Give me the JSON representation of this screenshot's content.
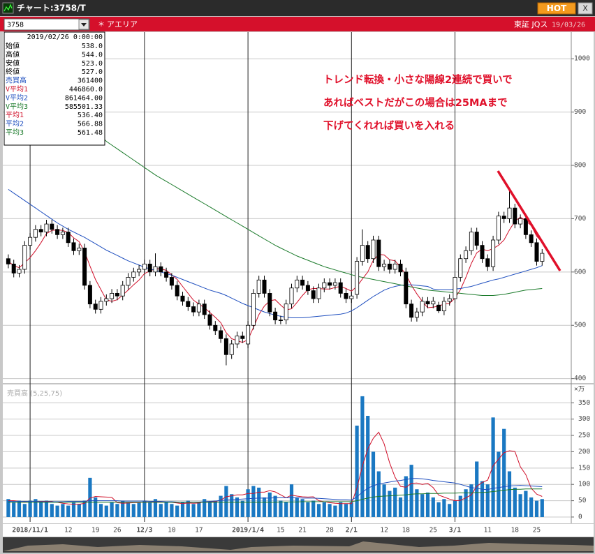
{
  "window": {
    "title": "チャート:3758/T",
    "hot": "HOT",
    "close": "X"
  },
  "toolbar": {
    "code": "3758",
    "name": "アエリア",
    "market": "東証 JQス",
    "date": "19/03/26"
  },
  "info_panel": {
    "date": "2019/02/26 0:00:00",
    "rows": [
      {
        "label": "始値",
        "value": "538.0",
        "color": "#000000"
      },
      {
        "label": "高値",
        "value": "544.0",
        "color": "#000000"
      },
      {
        "label": "安値",
        "value": "523.0",
        "color": "#000000"
      },
      {
        "label": "終値",
        "value": "527.0",
        "color": "#000000"
      },
      {
        "label": "売買高",
        "value": "361400",
        "color": "#1f4fbf"
      },
      {
        "label": "V平均1",
        "value": "446860.0",
        "color": "#d0102a"
      },
      {
        "label": "V平均2",
        "value": "861464.00",
        "color": "#1f4fbf"
      },
      {
        "label": "V平均3",
        "value": "585501.33",
        "color": "#1a7a2a"
      },
      {
        "label": "平均1",
        "value": "536.40",
        "color": "#d0102a"
      },
      {
        "label": "平均2",
        "value": "566.88",
        "color": "#1f4fbf"
      },
      {
        "label": "平均3",
        "value": "561.48",
        "color": "#1a7a2a"
      }
    ]
  },
  "chart_data": {
    "type": "candlestick",
    "categories": [
      null,
      null,
      null,
      null,
      "2018/11/1",
      null,
      null,
      null,
      null,
      null,
      null,
      "12",
      null,
      null,
      null,
      null,
      "19",
      null,
      null,
      null,
      "26",
      null,
      null,
      null,
      null,
      "12/3",
      null,
      null,
      null,
      null,
      "10",
      null,
      null,
      null,
      null,
      "17",
      null,
      null,
      null,
      null,
      null,
      null,
      null,
      null,
      "2019/1/4",
      null,
      null,
      null,
      null,
      null,
      "15",
      null,
      null,
      null,
      "21",
      null,
      null,
      null,
      null,
      "28",
      null,
      null,
      null,
      "2/1",
      null,
      null,
      null,
      null,
      null,
      "12",
      null,
      null,
      null,
      "18",
      null,
      null,
      null,
      null,
      "25",
      null,
      null,
      null,
      "3/1",
      null,
      null,
      null,
      null,
      null,
      "11",
      null,
      null,
      null,
      null,
      "18",
      null,
      null,
      null,
      "25",
      null
    ],
    "open": [
      625,
      615,
      598,
      605,
      650,
      665,
      680,
      675,
      690,
      680,
      670,
      675,
      655,
      640,
      645,
      575,
      540,
      530,
      545,
      550,
      560,
      555,
      575,
      590,
      600,
      605,
      615,
      600,
      610,
      600,
      590,
      575,
      555,
      545,
      535,
      525,
      540,
      520,
      500,
      490,
      475,
      445,
      465,
      480,
      465,
      500,
      560,
      585,
      560,
      525,
      510,
      510,
      540,
      570,
      585,
      575,
      565,
      550,
      570,
      580,
      575,
      580,
      560,
      550,
      558,
      620,
      650,
      625,
      660,
      610,
      615,
      605,
      615,
      600,
      540,
      515,
      525,
      545,
      540,
      538,
      527,
      545,
      550,
      590,
      625,
      640,
      675,
      650,
      625,
      610,
      660,
      705,
      700,
      720,
      690,
      700,
      670,
      655,
      620
    ],
    "high": [
      633,
      623,
      613,
      658,
      673,
      688,
      688,
      698,
      698,
      688,
      683,
      683,
      663,
      653,
      653,
      583,
      548,
      553,
      558,
      568,
      568,
      583,
      598,
      608,
      613,
      623,
      623,
      635,
      618,
      608,
      598,
      583,
      563,
      553,
      543,
      548,
      548,
      528,
      508,
      498,
      483,
      473,
      488,
      488,
      508,
      568,
      593,
      593,
      568,
      533,
      518,
      548,
      578,
      593,
      593,
      583,
      573,
      578,
      588,
      588,
      588,
      588,
      568,
      563,
      628,
      680,
      658,
      668,
      668,
      623,
      623,
      623,
      623,
      608,
      548,
      533,
      553,
      553,
      553,
      544,
      553,
      558,
      598,
      633,
      648,
      683,
      683,
      658,
      633,
      668,
      713,
      713,
      755,
      728,
      708,
      708,
      678,
      663,
      643
    ],
    "low": [
      607,
      590,
      590,
      597,
      642,
      657,
      667,
      667,
      672,
      662,
      662,
      647,
      632,
      632,
      567,
      532,
      522,
      522,
      537,
      542,
      547,
      547,
      567,
      582,
      592,
      597,
      592,
      592,
      592,
      582,
      567,
      547,
      537,
      527,
      517,
      517,
      512,
      492,
      482,
      467,
      425,
      437,
      457,
      467,
      457,
      492,
      552,
      552,
      517,
      502,
      502,
      502,
      532,
      562,
      567,
      557,
      542,
      542,
      562,
      567,
      567,
      552,
      542,
      542,
      550,
      612,
      617,
      617,
      602,
      602,
      597,
      597,
      592,
      532,
      507,
      507,
      517,
      532,
      532,
      523,
      519,
      537,
      542,
      582,
      617,
      632,
      642,
      617,
      602,
      602,
      652,
      692,
      692,
      682,
      682,
      662,
      647,
      612,
      612
    ],
    "close": [
      615,
      598,
      605,
      650,
      665,
      680,
      675,
      690,
      680,
      670,
      675,
      655,
      640,
      645,
      575,
      540,
      530,
      545,
      550,
      560,
      555,
      575,
      590,
      600,
      605,
      615,
      600,
      610,
      600,
      590,
      575,
      555,
      545,
      535,
      525,
      540,
      520,
      500,
      490,
      475,
      445,
      465,
      480,
      475,
      500,
      560,
      585,
      560,
      525,
      510,
      510,
      540,
      570,
      585,
      575,
      565,
      550,
      570,
      580,
      575,
      580,
      560,
      550,
      555,
      620,
      650,
      625,
      660,
      610,
      615,
      605,
      615,
      600,
      540,
      515,
      525,
      545,
      540,
      545,
      527,
      545,
      550,
      590,
      625,
      640,
      675,
      650,
      625,
      610,
      660,
      705,
      700,
      720,
      690,
      700,
      670,
      655,
      620,
      635
    ],
    "up_color": "#ffffff",
    "down_color": "#000000",
    "ylim": [
      393,
      1050
    ],
    "yticks": [
      400,
      500,
      600,
      700,
      800,
      900,
      1000
    ],
    "grid": true,
    "moving_averages": [
      {
        "color": "#d0102a",
        "values": [
          620,
          612,
          608,
          617,
          627,
          640,
          655,
          672,
          678,
          679,
          678,
          674,
          664,
          657,
          638,
          611,
          586,
          567,
          548,
          545,
          548,
          557,
          566,
          576,
          585,
          597,
          602,
          606,
          606,
          603,
          595,
          586,
          573,
          560,
          547,
          540,
          533,
          524,
          515,
          505,
          486,
          475,
          471,
          468,
          473,
          496,
          520,
          536,
          546,
          548,
          538,
          529,
          531,
          543,
          556,
          567,
          569,
          569,
          568,
          568,
          571,
          573,
          569,
          564,
          573,
          587,
          600,
          622,
          633,
          632,
          623,
          621,
          609,
          595,
          575,
          559,
          545,
          533,
          534,
          536,
          540,
          541,
          551,
          567,
          590,
          616,
          636,
          643,
          640,
          644,
          650,
          660,
          679,
          695,
          703,
          696,
          687,
          667,
          656
        ]
      },
      {
        "color": "#1f4fbf",
        "values": [
          755,
          748,
          741,
          734,
          727,
          720,
          713,
          706,
          699,
          692,
          686,
          680,
          675,
          670,
          665,
          659,
          653,
          647,
          641,
          636,
          631,
          626,
          621,
          617,
          613,
          609,
          606,
          603,
          600,
          597,
          594,
          590,
          586,
          582,
          578,
          574,
          570,
          566,
          563,
          560,
          556,
          551,
          546,
          541,
          537,
          533,
          529,
          525,
          522,
          519,
          517,
          515,
          514,
          514,
          514,
          515,
          516,
          517,
          518,
          519,
          520,
          521,
          523,
          527,
          533,
          540,
          547,
          554,
          560,
          566,
          570,
          573,
          575,
          576,
          576,
          575,
          574,
          573,
          568,
          567,
          567,
          567,
          568,
          569,
          571,
          573,
          576,
          579,
          582,
          585,
          587,
          590,
          593,
          596,
          599,
          602,
          605,
          608,
          612
        ]
      },
      {
        "color": "#1a7a2a",
        "values": [
          930,
          925,
          920,
          915,
          910,
          905,
          900,
          896,
          892,
          888,
          884,
          880,
          876,
          872,
          868,
          864,
          860,
          856,
          845,
          838,
          831,
          824,
          817,
          810,
          803,
          796,
          789,
          782,
          776,
          770,
          764,
          758,
          752,
          746,
          740,
          734,
          728,
          722,
          716,
          710,
          704,
          698,
          692,
          686,
          680,
          674,
          668,
          662,
          656,
          650,
          645,
          640,
          635,
          630,
          626,
          622,
          618,
          614,
          610,
          607,
          604,
          601,
          598,
          595,
          592,
          590,
          588,
          586,
          584,
          582,
          580,
          578,
          576,
          574,
          572,
          570,
          568,
          566,
          565,
          564,
          563,
          562,
          561,
          560,
          559,
          558,
          557,
          556,
          556,
          556,
          557,
          558,
          560,
          562,
          564,
          566,
          567,
          568,
          569
        ]
      }
    ],
    "volume": {
      "type": "bar",
      "title": "売買高 (5,25,75)",
      "unit": "×万",
      "color": "#1a78c2",
      "values": [
        55,
        45,
        50,
        40,
        50,
        55,
        45,
        50,
        40,
        35,
        40,
        35,
        45,
        40,
        50,
        120,
        60,
        40,
        35,
        45,
        40,
        50,
        45,
        40,
        45,
        50,
        45,
        55,
        40,
        45,
        40,
        35,
        45,
        50,
        40,
        45,
        55,
        45,
        50,
        65,
        95,
        70,
        60,
        50,
        85,
        95,
        90,
        60,
        75,
        65,
        50,
        45,
        100,
        60,
        55,
        45,
        50,
        40,
        45,
        40,
        35,
        45,
        40,
        45,
        280,
        370,
        310,
        200,
        140,
        100,
        80,
        90,
        60,
        125,
        160,
        85,
        70,
        75,
        60,
        45,
        55,
        40,
        50,
        65,
        85,
        100,
        170,
        110,
        100,
        305,
        200,
        270,
        140,
        90,
        70,
        80,
        60,
        50,
        55
      ],
      "ylim": [
        -15,
        404
      ],
      "yticks": [
        0,
        50,
        100,
        150,
        200,
        250,
        300,
        350
      ],
      "grid": true,
      "moving_averages": [
        {
          "color": "#d0102a",
          "values": [
            50,
            50,
            48,
            47,
            48,
            48,
            48,
            48,
            48,
            45,
            42,
            40,
            39,
            39,
            42,
            58,
            63,
            62,
            61,
            60,
            44,
            42,
            43,
            44,
            44,
            46,
            45,
            47,
            47,
            47,
            45,
            43,
            41,
            43,
            42,
            43,
            47,
            47,
            47,
            52,
            62,
            65,
            68,
            68,
            72,
            72,
            76,
            76,
            81,
            77,
            68,
            59,
            67,
            64,
            62,
            61,
            62,
            50,
            47,
            44,
            42,
            41,
            41,
            41,
            89,
            156,
            209,
            241,
            260,
            224,
            166,
            122,
            94,
            91,
            103,
            104,
            100,
            103,
            90,
            67,
            61,
            55,
            50,
            51,
            59,
            68,
            94,
            106,
            113,
            157,
            177,
            197,
            203,
            201,
            154,
            130,
            88,
            70,
            63
          ]
        },
        {
          "color": "#1f4fbf",
          "values": [
            48,
            48,
            48,
            48,
            48,
            48,
            47,
            47,
            47,
            47,
            47,
            48,
            48,
            48,
            48,
            50,
            50,
            50,
            50,
            50,
            50,
            49,
            49,
            49,
            49,
            49,
            48,
            48,
            48,
            47,
            47,
            46,
            46,
            46,
            46,
            46,
            47,
            48,
            49,
            51,
            52,
            53,
            54,
            55,
            56,
            57,
            58,
            58,
            58,
            59,
            59,
            59,
            59,
            59,
            58,
            58,
            58,
            57,
            56,
            55,
            54,
            53,
            53,
            52,
            62,
            76,
            88,
            96,
            101,
            104,
            107,
            110,
            112,
            115,
            118,
            118,
            117,
            115,
            112,
            110,
            108,
            106,
            104,
            100,
            95,
            90,
            88,
            85,
            84,
            88,
            90,
            93,
            95,
            96,
            97,
            96,
            95,
            94,
            93
          ]
        },
        {
          "color": "#1a7a2a",
          "values": [
            45,
            45,
            45,
            45,
            45,
            45,
            45,
            45,
            45,
            45,
            45,
            45,
            45,
            45,
            45,
            45,
            45,
            45,
            45,
            45,
            45,
            45,
            45,
            45,
            45,
            45,
            45,
            45,
            45,
            45,
            45,
            45,
            45,
            45,
            45,
            45,
            45,
            45,
            45,
            45,
            45,
            45,
            45,
            45,
            45,
            45,
            45,
            45,
            45,
            45,
            46,
            46,
            46,
            46,
            47,
            47,
            47,
            47,
            47,
            47,
            47,
            47,
            47,
            47,
            50,
            54,
            58,
            61,
            63,
            64,
            65,
            66,
            67,
            68,
            70,
            71,
            71,
            72,
            72,
            72,
            73,
            73,
            73,
            74,
            74,
            74,
            75,
            75,
            76,
            78,
            80,
            82,
            84,
            85,
            85,
            86,
            86,
            86,
            86
          ]
        }
      ]
    },
    "annotation": {
      "color": "#e0102a",
      "lines": [
        "トレンド転換・小さな陽線2連続で買いで",
        "あればベストだがこの場合は25MAまで",
        "下げてくれれば買いを入れる"
      ]
    }
  }
}
